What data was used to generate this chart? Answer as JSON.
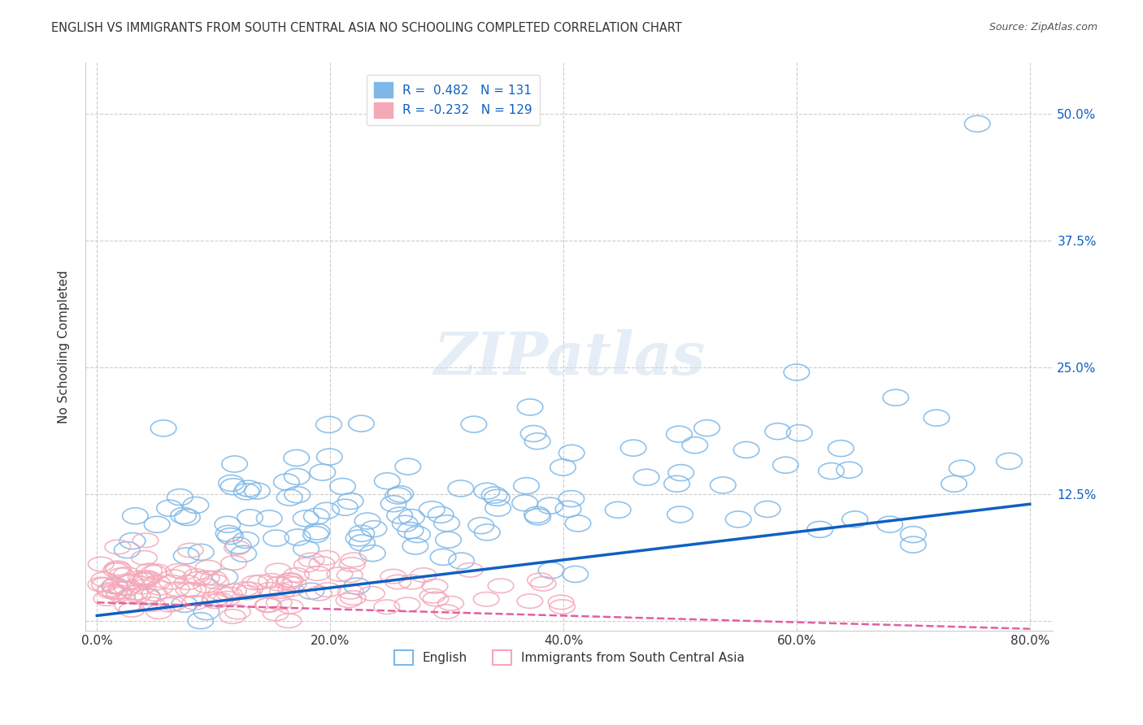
{
  "title": "ENGLISH VS IMMIGRANTS FROM SOUTH CENTRAL ASIA NO SCHOOLING COMPLETED CORRELATION CHART",
  "source": "Source: ZipAtlas.com",
  "xlabel": "",
  "ylabel": "No Schooling Completed",
  "watermark": "ZIPatlas",
  "xlim": [
    0.0,
    0.8
  ],
  "ylim": [
    -0.01,
    0.55
  ],
  "yticks": [
    0.0,
    0.125,
    0.25,
    0.375,
    0.5
  ],
  "ytick_labels": [
    "",
    "12.5%",
    "25.0%",
    "37.5%",
    "50.0%"
  ],
  "xtick_labels": [
    "0.0%",
    "20.0%",
    "40.0%",
    "60.0%",
    "80.0%"
  ],
  "xticks": [
    0.0,
    0.2,
    0.4,
    0.6,
    0.8
  ],
  "blue_R": 0.482,
  "blue_N": 131,
  "pink_R": -0.232,
  "pink_N": 129,
  "blue_color": "#7EB8E8",
  "pink_color": "#F4A8B8",
  "blue_line_color": "#1060C0",
  "pink_line_color": "#E060A0",
  "title_fontsize": 11,
  "legend_blue_label": "R =  0.482   N = 131",
  "legend_pink_label": "R = -0.232   N = 129",
  "english_legend": "English",
  "immigrant_legend": "Immigrants from South Central Asia",
  "background_color": "#ffffff",
  "grid_color": "#cccccc",
  "seed": 42
}
